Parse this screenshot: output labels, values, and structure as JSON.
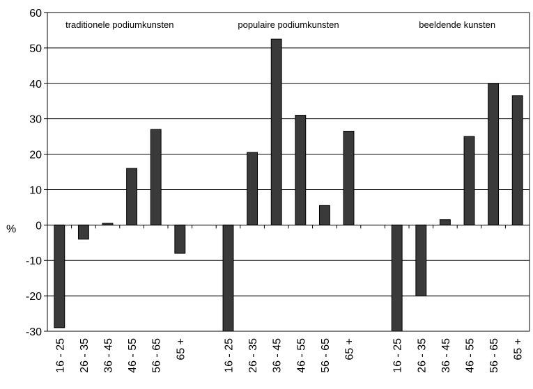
{
  "chart_data": {
    "type": "bar",
    "ylabel": "%",
    "ylim": [
      -30,
      60
    ],
    "yticks": [
      60,
      50,
      40,
      30,
      20,
      10,
      0,
      -10,
      -20,
      -30
    ],
    "grid": true,
    "bar_color": "#3a3a3a",
    "groups": [
      {
        "label": "traditionele podiumkunsten",
        "categories": [
          "16 - 25",
          "26 - 35",
          "36 - 45",
          "46 - 55",
          "56 - 65",
          "65 +"
        ],
        "values": [
          -29,
          -4,
          0.5,
          16,
          27,
          -8
        ]
      },
      {
        "label": "populaire podiumkunsten",
        "categories": [
          "16 - 25",
          "26 - 35",
          "36 - 45",
          "46 - 55",
          "56 - 65",
          "65 +"
        ],
        "values": [
          -30,
          20.5,
          52.5,
          31,
          5.5,
          26.5
        ]
      },
      {
        "label": "beeldende kunsten",
        "categories": [
          "16 - 25",
          "26 - 35",
          "36 - 45",
          "46 - 55",
          "56 - 65",
          "65 +"
        ],
        "values": [
          -30,
          -20,
          1.5,
          25,
          40,
          36.5
        ]
      }
    ]
  }
}
